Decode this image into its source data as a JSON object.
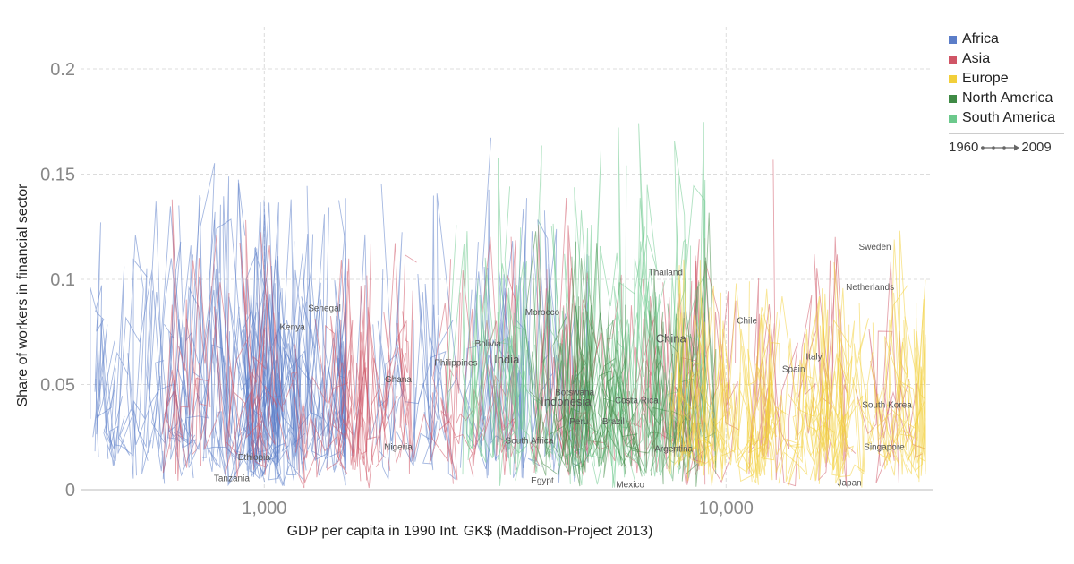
{
  "chart_data": {
    "type": "line",
    "title": "",
    "xlabel": "GDP per capita in 1990 Int. GK$ (Maddison-Project 2013)",
    "ylabel": "Share of workers in financial sector",
    "x_scale": "log",
    "xlim": [
      400,
      28000
    ],
    "ylim": [
      0,
      0.22
    ],
    "x_ticks": [
      {
        "value": 1000,
        "label": "1,000"
      },
      {
        "value": 10000,
        "label": "10,000"
      }
    ],
    "y_ticks": [
      {
        "value": 0,
        "label": "0"
      },
      {
        "value": 0.05,
        "label": "0.05"
      },
      {
        "value": 0.1,
        "label": "0.1"
      },
      {
        "value": 0.15,
        "label": "0.15"
      },
      {
        "value": 0.2,
        "label": "0.2"
      }
    ],
    "grid": true,
    "legend_position": "top-right",
    "time_range": {
      "start": "1960",
      "end": "2009"
    },
    "regions": [
      {
        "name": "Africa",
        "color": "#5b7dc8"
      },
      {
        "name": "Asia",
        "color": "#d05566"
      },
      {
        "name": "Europe",
        "color": "#f2cf3a"
      },
      {
        "name": "North America",
        "color": "#3f8a45"
      },
      {
        "name": "South America",
        "color": "#6cc98c"
      }
    ],
    "labels": [
      {
        "name": "Tanzania",
        "x": 850,
        "y": 0.004,
        "region": "Africa"
      },
      {
        "name": "Ethiopia",
        "x": 950,
        "y": 0.014,
        "region": "Africa"
      },
      {
        "name": "Kenya",
        "x": 1150,
        "y": 0.076,
        "region": "Africa"
      },
      {
        "name": "Senegal",
        "x": 1350,
        "y": 0.085,
        "region": "Africa"
      },
      {
        "name": "Ghana",
        "x": 1950,
        "y": 0.051,
        "region": "Africa"
      },
      {
        "name": "Nigeria",
        "x": 1950,
        "y": 0.019,
        "region": "Africa"
      },
      {
        "name": "Philippines",
        "x": 2600,
        "y": 0.059,
        "region": "Asia"
      },
      {
        "name": "Bolivia",
        "x": 3050,
        "y": 0.068,
        "region": "South America"
      },
      {
        "name": "India",
        "x": 3350,
        "y": 0.06,
        "region": "Asia",
        "big": true
      },
      {
        "name": "Morocco",
        "x": 4000,
        "y": 0.083,
        "region": "Africa"
      },
      {
        "name": "South Africa",
        "x": 3750,
        "y": 0.022,
        "region": "Africa"
      },
      {
        "name": "Egypt",
        "x": 4000,
        "y": 0.003,
        "region": "Africa"
      },
      {
        "name": "Botswana",
        "x": 4700,
        "y": 0.045,
        "region": "Africa"
      },
      {
        "name": "Indonesia",
        "x": 4500,
        "y": 0.04,
        "region": "Asia",
        "big": true
      },
      {
        "name": "Peru",
        "x": 4800,
        "y": 0.031,
        "region": "South America"
      },
      {
        "name": "Brazil",
        "x": 5700,
        "y": 0.031,
        "region": "South America"
      },
      {
        "name": "Costa Rica",
        "x": 6400,
        "y": 0.041,
        "region": "North America"
      },
      {
        "name": "Mexico",
        "x": 6200,
        "y": 0.001,
        "region": "North America"
      },
      {
        "name": "Argentina",
        "x": 7700,
        "y": 0.018,
        "region": "South America"
      },
      {
        "name": "Thailand",
        "x": 7400,
        "y": 0.102,
        "region": "Asia"
      },
      {
        "name": "China",
        "x": 7600,
        "y": 0.07,
        "region": "Asia",
        "big": true
      },
      {
        "name": "Chile",
        "x": 11100,
        "y": 0.079,
        "region": "South America"
      },
      {
        "name": "Spain",
        "x": 14000,
        "y": 0.056,
        "region": "Europe"
      },
      {
        "name": "Italy",
        "x": 15500,
        "y": 0.062,
        "region": "Europe"
      },
      {
        "name": "Netherlands",
        "x": 20500,
        "y": 0.095,
        "region": "Europe"
      },
      {
        "name": "Sweden",
        "x": 21000,
        "y": 0.114,
        "region": "Europe"
      },
      {
        "name": "South Korea",
        "x": 22300,
        "y": 0.039,
        "region": "Asia"
      },
      {
        "name": "Singapore",
        "x": 22000,
        "y": 0.019,
        "region": "Asia"
      },
      {
        "name": "Japan",
        "x": 18500,
        "y": 0.002,
        "region": "Asia"
      }
    ]
  }
}
